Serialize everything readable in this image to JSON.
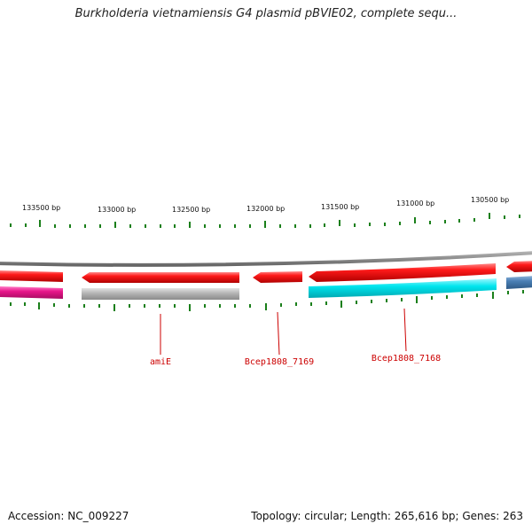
{
  "header": {
    "title": "Burkholderia vietnamiensis G4 plasmid pBVIE02, complete sequ..."
  },
  "footer": {
    "accession": "Accession: NC_009227",
    "summary": "Topology: circular; Length: 265,616 bp; Genes: 263"
  },
  "scale": {
    "unit": "bp",
    "labels": [
      "133500 bp",
      "133000 bp",
      "132500 bp",
      "132000 bp",
      "131500 bp",
      "131000 bp",
      "130500 bp"
    ]
  },
  "gene_labels": [
    "amiE",
    "Bcep1808_7169",
    "Bcep1808_7168"
  ],
  "colors": {
    "backbone": "#8c8c8c",
    "cds": "#ff0000",
    "gene_pink": "#e8168a",
    "gene_gray": "#b4b4b4",
    "gene_cyan": "#00e5ee",
    "gene_steel": "#4a7fb5",
    "ticks": "#1a7f1a",
    "labels": "#cc0000"
  }
}
